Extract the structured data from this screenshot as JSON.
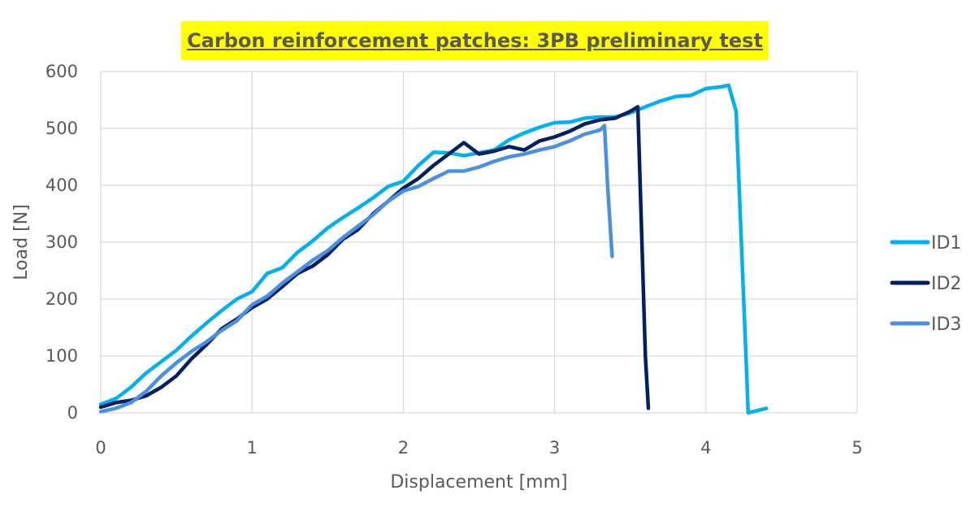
{
  "chart_data": {
    "type": "line",
    "title": "Carbon reinforcement patches: 3PB preliminary test",
    "xlabel": "Displacement [mm]",
    "ylabel": "Load [N]",
    "xlim": [
      0,
      5
    ],
    "ylim": [
      0,
      600
    ],
    "x_ticks": [
      "0",
      "1",
      "2",
      "3",
      "4",
      "5"
    ],
    "y_ticks": [
      "0",
      "100",
      "200",
      "300",
      "400",
      "500",
      "600"
    ],
    "grid": "both",
    "legend_position": "right",
    "series": [
      {
        "name": "ID1",
        "color": "#00b0f0",
        "points": [
          [
            0,
            15
          ],
          [
            0.1,
            25
          ],
          [
            0.2,
            45
          ],
          [
            0.3,
            70
          ],
          [
            0.4,
            90
          ],
          [
            0.5,
            110
          ],
          [
            0.6,
            135
          ],
          [
            0.7,
            158
          ],
          [
            0.8,
            180
          ],
          [
            0.9,
            200
          ],
          [
            1.0,
            213
          ],
          [
            1.1,
            245
          ],
          [
            1.2,
            255
          ],
          [
            1.3,
            282
          ],
          [
            1.4,
            302
          ],
          [
            1.5,
            325
          ],
          [
            1.6,
            343
          ],
          [
            1.7,
            360
          ],
          [
            1.8,
            378
          ],
          [
            1.9,
            398
          ],
          [
            2.0,
            407
          ],
          [
            2.1,
            435
          ],
          [
            2.2,
            458
          ],
          [
            2.3,
            457
          ],
          [
            2.4,
            452
          ],
          [
            2.5,
            457
          ],
          [
            2.6,
            462
          ],
          [
            2.7,
            480
          ],
          [
            2.8,
            492
          ],
          [
            2.9,
            502
          ],
          [
            3.0,
            510
          ],
          [
            3.1,
            511
          ],
          [
            3.2,
            518
          ],
          [
            3.3,
            520
          ],
          [
            3.4,
            520
          ],
          [
            3.5,
            527
          ],
          [
            3.6,
            538
          ],
          [
            3.7,
            548
          ],
          [
            3.8,
            556
          ],
          [
            3.9,
            558
          ],
          [
            4.0,
            570
          ],
          [
            4.1,
            573
          ],
          [
            4.15,
            576
          ],
          [
            4.2,
            530
          ],
          [
            4.28,
            0
          ],
          [
            4.4,
            8
          ]
        ]
      },
      {
        "name": "ID2",
        "color": "#002060",
        "points": [
          [
            0,
            10
          ],
          [
            0.1,
            18
          ],
          [
            0.2,
            22
          ],
          [
            0.3,
            30
          ],
          [
            0.4,
            45
          ],
          [
            0.5,
            65
          ],
          [
            0.6,
            95
          ],
          [
            0.7,
            120
          ],
          [
            0.8,
            148
          ],
          [
            0.9,
            165
          ],
          [
            1.0,
            185
          ],
          [
            1.1,
            200
          ],
          [
            1.2,
            222
          ],
          [
            1.3,
            245
          ],
          [
            1.4,
            258
          ],
          [
            1.5,
            278
          ],
          [
            1.6,
            305
          ],
          [
            1.7,
            322
          ],
          [
            1.8,
            350
          ],
          [
            1.9,
            372
          ],
          [
            2.0,
            395
          ],
          [
            2.1,
            412
          ],
          [
            2.2,
            435
          ],
          [
            2.3,
            455
          ],
          [
            2.4,
            475
          ],
          [
            2.5,
            455
          ],
          [
            2.6,
            460
          ],
          [
            2.7,
            468
          ],
          [
            2.8,
            462
          ],
          [
            2.9,
            478
          ],
          [
            3.0,
            485
          ],
          [
            3.1,
            495
          ],
          [
            3.2,
            508
          ],
          [
            3.3,
            515
          ],
          [
            3.4,
            518
          ],
          [
            3.5,
            530
          ],
          [
            3.55,
            538
          ],
          [
            3.6,
            100
          ],
          [
            3.62,
            8
          ]
        ]
      },
      {
        "name": "ID3",
        "color": "#4a90e2",
        "points": [
          [
            0,
            2
          ],
          [
            0.1,
            8
          ],
          [
            0.2,
            18
          ],
          [
            0.3,
            38
          ],
          [
            0.4,
            65
          ],
          [
            0.5,
            88
          ],
          [
            0.6,
            108
          ],
          [
            0.7,
            125
          ],
          [
            0.8,
            145
          ],
          [
            0.9,
            162
          ],
          [
            1.0,
            190
          ],
          [
            1.1,
            205
          ],
          [
            1.2,
            228
          ],
          [
            1.3,
            248
          ],
          [
            1.4,
            268
          ],
          [
            1.5,
            285
          ],
          [
            1.6,
            308
          ],
          [
            1.7,
            328
          ],
          [
            1.8,
            348
          ],
          [
            1.9,
            372
          ],
          [
            2.0,
            390
          ],
          [
            2.1,
            398
          ],
          [
            2.2,
            412
          ],
          [
            2.3,
            425
          ],
          [
            2.4,
            425
          ],
          [
            2.5,
            432
          ],
          [
            2.6,
            442
          ],
          [
            2.7,
            450
          ],
          [
            2.8,
            455
          ],
          [
            2.9,
            462
          ],
          [
            3.0,
            468
          ],
          [
            3.1,
            478
          ],
          [
            3.2,
            490
          ],
          [
            3.3,
            497
          ],
          [
            3.33,
            505
          ],
          [
            3.35,
            400
          ],
          [
            3.38,
            275
          ]
        ]
      }
    ]
  }
}
